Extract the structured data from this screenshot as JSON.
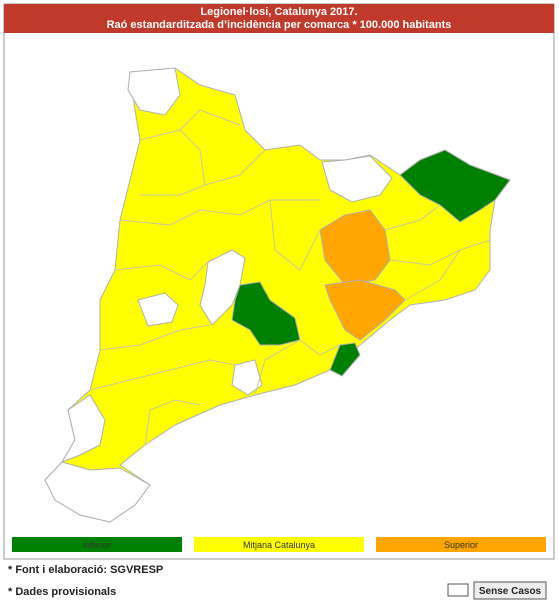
{
  "header": {
    "title": "Legionel·losi, Catalunya 2017.",
    "subtitle": "Raó estandarditzada d’incidència per comarca * 100.000 habitants"
  },
  "legend": [
    {
      "label": "Inferior",
      "color": "#008000"
    },
    {
      "label": "Mitjana Catalunya",
      "color": "#ffff00"
    },
    {
      "label": "Superior",
      "color": "#ffa500"
    }
  ],
  "notes": [
    "* Font i elaboració: SGVRESP",
    "* Dades provisionals"
  ],
  "no_cases": {
    "label": "Sense Casos",
    "color": "#ffffff"
  }
}
